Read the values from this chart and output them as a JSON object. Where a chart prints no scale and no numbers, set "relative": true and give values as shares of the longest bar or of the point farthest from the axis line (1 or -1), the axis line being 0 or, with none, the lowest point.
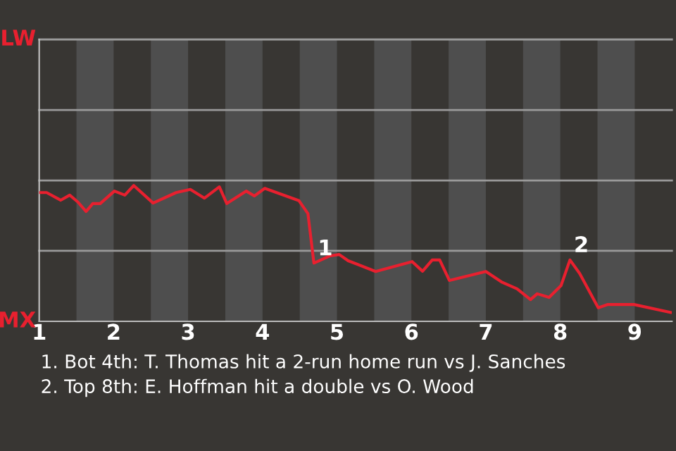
{
  "chart_data": {
    "type": "line",
    "relative": true,
    "x": [
      1,
      1.1,
      1.29,
      1.41,
      1.52,
      1.63,
      1.72,
      1.82,
      2.01,
      2.15,
      2.27,
      2.53,
      2.84,
      3.03,
      3.22,
      3.42,
      3.52,
      3.78,
      3.89,
      4.03,
      4.49,
      4.61,
      4.69,
      4.9,
      5.03,
      5.15,
      5.52,
      6.01,
      6.15,
      6.28,
      6.38,
      6.51,
      7.0,
      7.21,
      7.42,
      7.6,
      7.69,
      7.85,
      8.01,
      8.13,
      8.26,
      8.51,
      8.64,
      8.99,
      9.48
    ],
    "series": [
      {
        "color": "#e8202f",
        "values": [
          0.948,
          0.948,
          0.892,
          0.929,
          0.878,
          0.809,
          0.867,
          0.867,
          0.959,
          0.929,
          1,
          0.871,
          0.948,
          0.971,
          0.907,
          0.99,
          0.867,
          0.959,
          0.923,
          0.979,
          0.888,
          0.793,
          0.429,
          0.481,
          0.492,
          0.446,
          0.367,
          0.44,
          0.369,
          0.452,
          0.452,
          0.301,
          0.367,
          0.29,
          0.239,
          0.16,
          0.203,
          0.176,
          0.263,
          0.452,
          0.353,
          0.1,
          0.124,
          0.124,
          0.066
        ]
      }
    ],
    "xlim": [
      1,
      9.5
    ],
    "xticks": [
      1,
      2,
      3,
      4,
      5,
      6,
      7,
      8,
      9
    ],
    "ref_lines": [
      {
        "axis": "y",
        "value": 0.519,
        "color": "#9a9a9a"
      },
      {
        "axis": "y",
        "value": 1.037,
        "color": "#9a9a9a"
      },
      {
        "axis": "y",
        "value": 1.556,
        "color": "#9a9a9a"
      },
      {
        "axis": "y",
        "value": 2.075,
        "color": "#9a9a9a"
      }
    ],
    "marker": "none",
    "line_style": "solid",
    "bands": [
      {
        "axis": "x",
        "from": 1.5,
        "to": 2,
        "color": "#4e4e4e"
      },
      {
        "axis": "x",
        "from": 2.5,
        "to": 3,
        "color": "#4e4e4e"
      },
      {
        "axis": "x",
        "from": 3.5,
        "to": 4,
        "color": "#4e4e4e"
      },
      {
        "axis": "x",
        "from": 4.5,
        "to": 5,
        "color": "#4e4e4e"
      },
      {
        "axis": "x",
        "from": 5.5,
        "to": 6,
        "color": "#4e4e4e"
      },
      {
        "axis": "x",
        "from": 6.5,
        "to": 7,
        "color": "#4e4e4e"
      },
      {
        "axis": "x",
        "from": 7.5,
        "to": 8,
        "color": "#4e4e4e"
      },
      {
        "axis": "x",
        "from": 8.5,
        "to": 9,
        "color": "#4e4e4e"
      }
    ],
    "annotations": [
      {
        "text": "1",
        "x": 4.69,
        "y": 0.429
      },
      {
        "text": "2",
        "x": 8.13,
        "y": 0.452
      },
      "LW",
      "MX",
      "1. Bot 4th: T. Thomas hit a 2-run home run vs J. Sanches",
      "2. Top 8th: E. Hoffman hit a double vs O. Wood"
    ]
  }
}
